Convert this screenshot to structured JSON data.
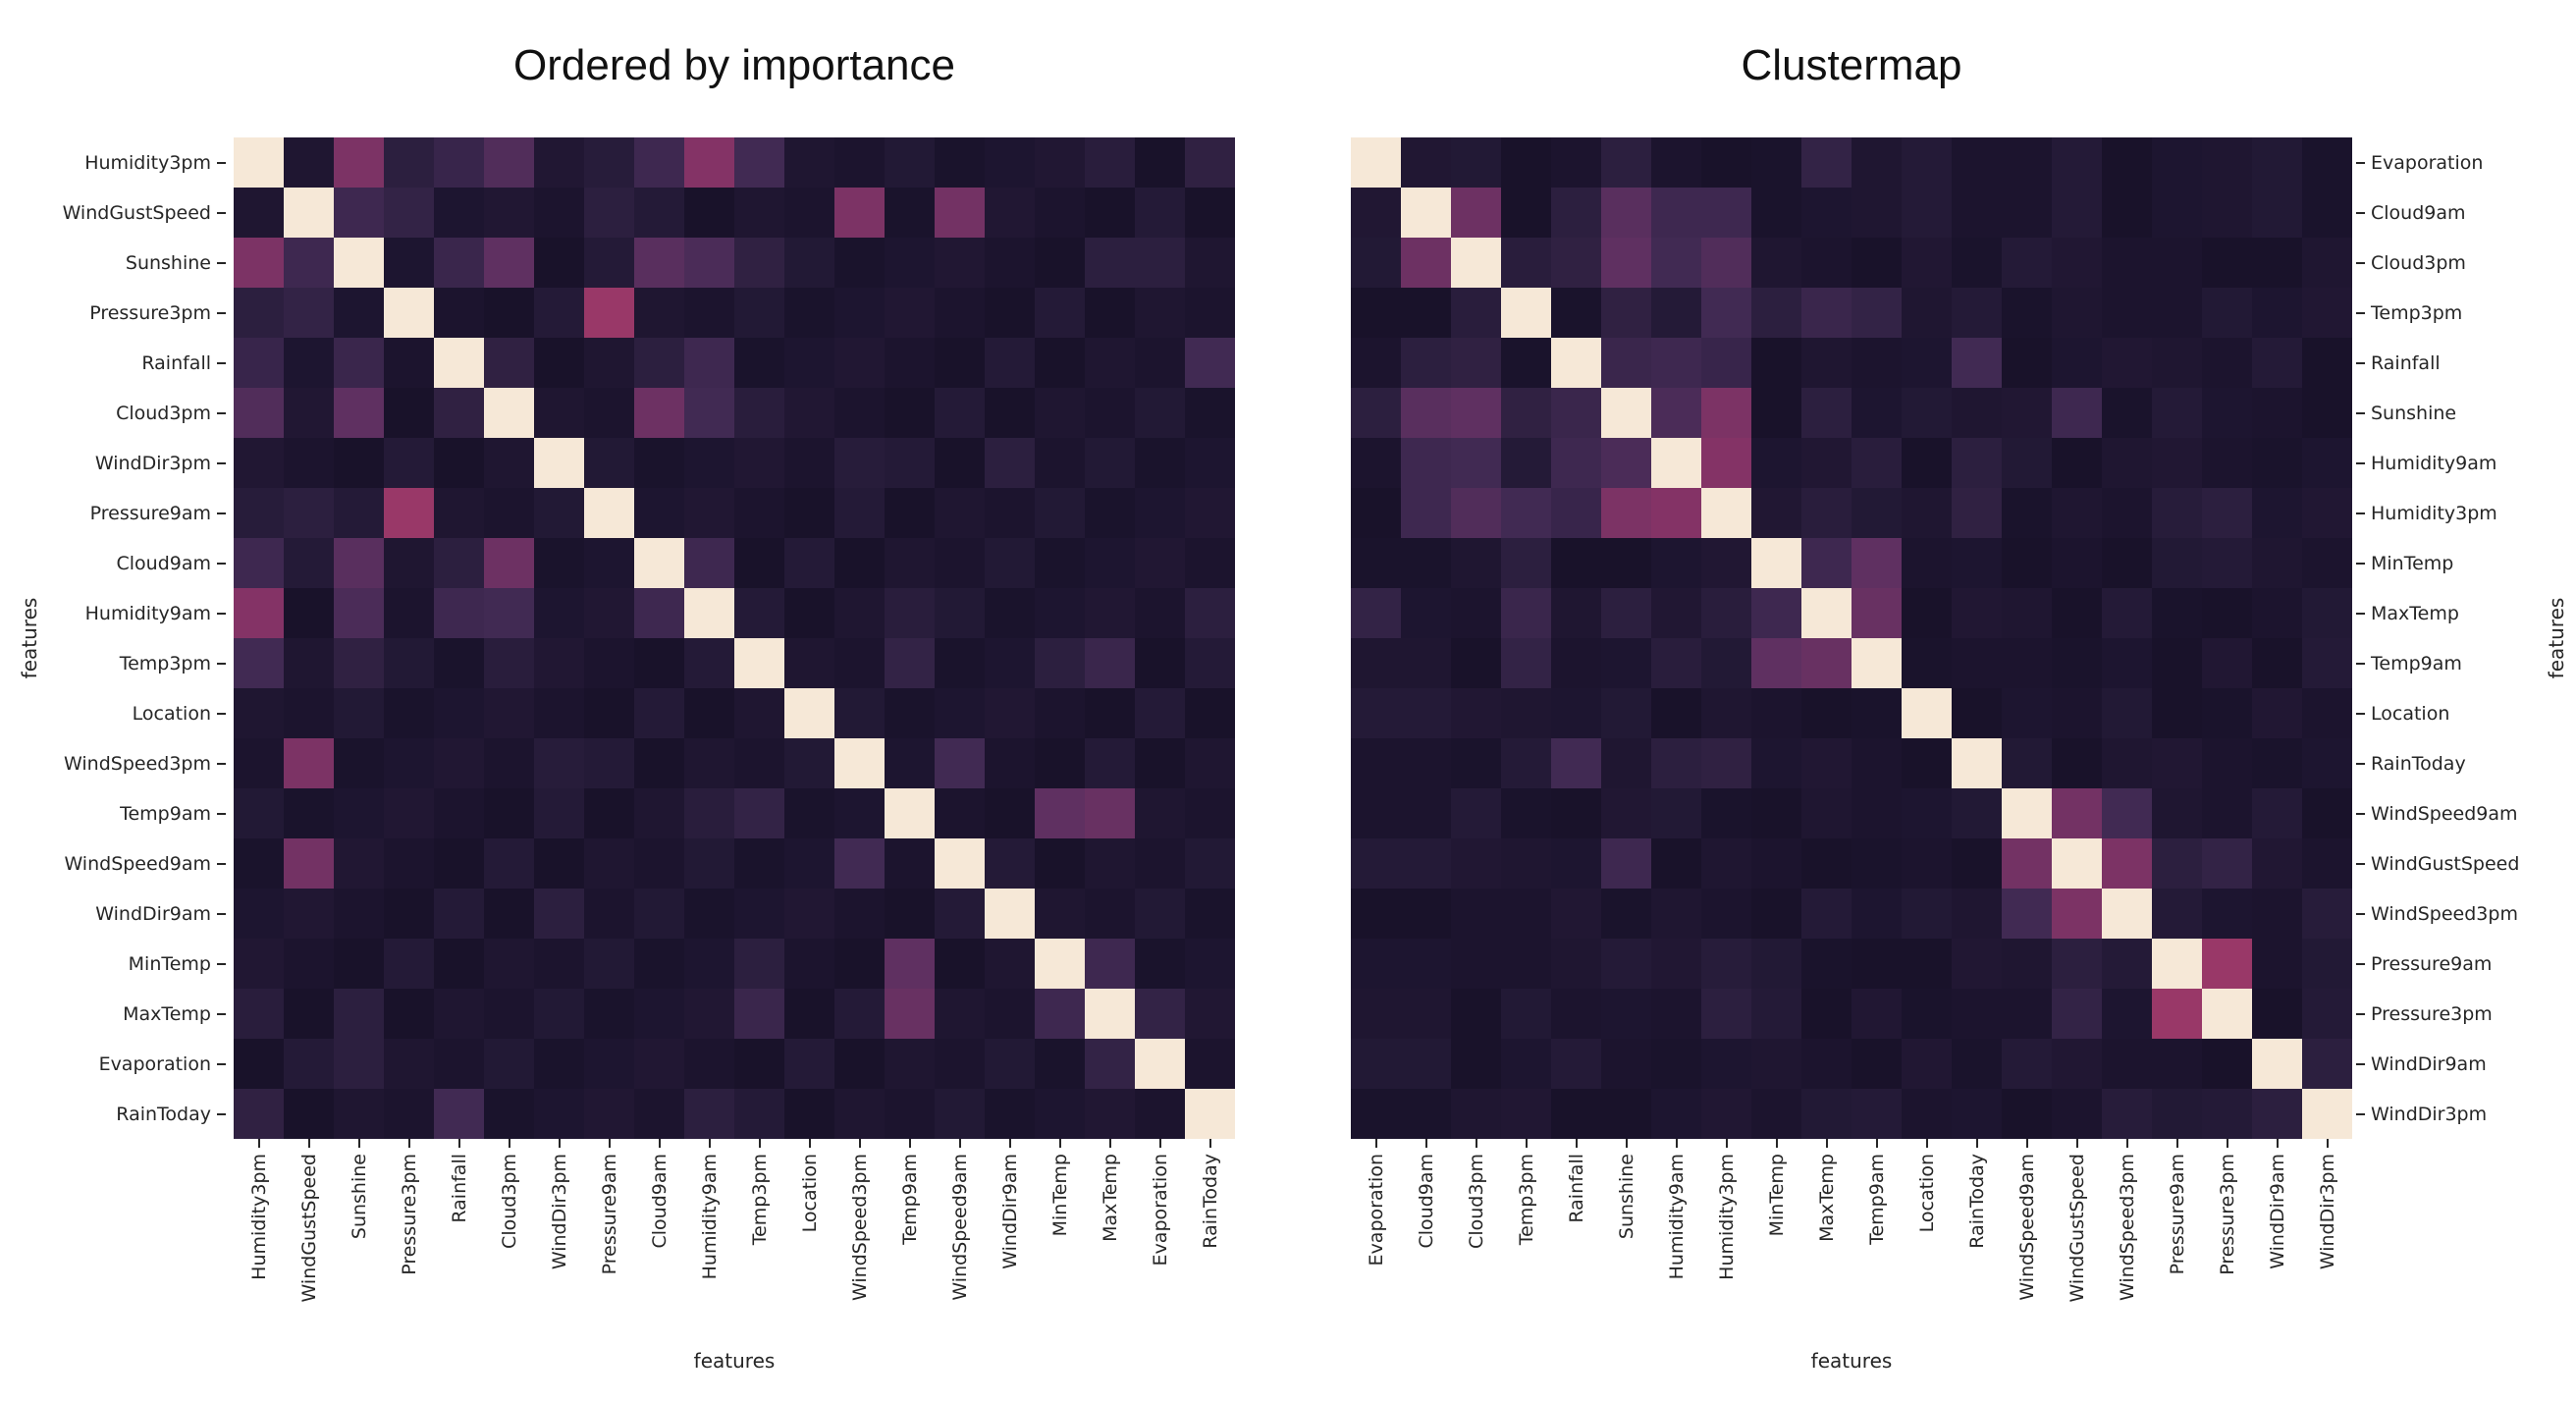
{
  "figure": {
    "background": "#ffffff"
  },
  "colormap": {
    "name": "rocket-like-dark-purple-to-cream",
    "stops": [
      [
        0.0,
        "#0f0b20"
      ],
      [
        0.15,
        "#271c3a"
      ],
      [
        0.3,
        "#412a53"
      ],
      [
        0.45,
        "#5f3061"
      ],
      [
        0.6,
        "#8a3467"
      ],
      [
        0.75,
        "#b8406b"
      ],
      [
        0.87,
        "#dd7e80"
      ],
      [
        1.0,
        "#f6e8d7"
      ]
    ]
  },
  "chart_data": [
    {
      "type": "heatmap",
      "title": "Ordered by importance",
      "xlabel": "features",
      "ylabel": "features",
      "ylabel_side": "left",
      "value_range": [
        0,
        1
      ],
      "grid": "off",
      "labels": [
        "Humidity3pm",
        "WindGustSpeed",
        "Sunshine",
        "Pressure3pm",
        "Rainfall",
        "Cloud3pm",
        "WindDir3pm",
        "Pressure9am",
        "Cloud9am",
        "Humidity9am",
        "Temp3pm",
        "Location",
        "WindSpeed3pm",
        "Temp9am",
        "WindSpeed9am",
        "WindDir9am",
        "MinTemp",
        "MaxTemp",
        "Evaporation",
        "RainToday"
      ],
      "values": [
        [
          1.0,
          0.1,
          0.55,
          0.18,
          0.25,
          0.38,
          0.11,
          0.15,
          0.28,
          0.58,
          0.3,
          0.1,
          0.08,
          0.12,
          0.07,
          0.09,
          0.11,
          0.16,
          0.06,
          0.2
        ],
        [
          0.1,
          1.0,
          0.28,
          0.22,
          0.09,
          0.11,
          0.08,
          0.18,
          0.13,
          0.06,
          0.1,
          0.08,
          0.55,
          0.07,
          0.52,
          0.11,
          0.08,
          0.06,
          0.13,
          0.06
        ],
        [
          0.55,
          0.28,
          1.0,
          0.09,
          0.26,
          0.45,
          0.06,
          0.13,
          0.42,
          0.35,
          0.2,
          0.12,
          0.07,
          0.09,
          0.11,
          0.08,
          0.06,
          0.18,
          0.18,
          0.1
        ],
        [
          0.18,
          0.22,
          0.09,
          1.0,
          0.08,
          0.06,
          0.13,
          0.65,
          0.1,
          0.08,
          0.12,
          0.07,
          0.09,
          0.11,
          0.08,
          0.06,
          0.13,
          0.06,
          0.1,
          0.08
        ],
        [
          0.25,
          0.09,
          0.26,
          0.08,
          1.0,
          0.2,
          0.06,
          0.1,
          0.18,
          0.28,
          0.07,
          0.09,
          0.11,
          0.08,
          0.06,
          0.13,
          0.06,
          0.1,
          0.08,
          0.3
        ],
        [
          0.38,
          0.11,
          0.45,
          0.06,
          0.2,
          1.0,
          0.1,
          0.08,
          0.5,
          0.3,
          0.16,
          0.11,
          0.08,
          0.06,
          0.13,
          0.06,
          0.1,
          0.08,
          0.12,
          0.07
        ],
        [
          0.11,
          0.08,
          0.06,
          0.13,
          0.06,
          0.1,
          1.0,
          0.12,
          0.07,
          0.09,
          0.11,
          0.08,
          0.15,
          0.13,
          0.06,
          0.18,
          0.08,
          0.12,
          0.07,
          0.09
        ],
        [
          0.15,
          0.18,
          0.13,
          0.65,
          0.1,
          0.08,
          0.12,
          1.0,
          0.09,
          0.11,
          0.08,
          0.06,
          0.13,
          0.06,
          0.1,
          0.08,
          0.12,
          0.07,
          0.09,
          0.11
        ],
        [
          0.28,
          0.13,
          0.42,
          0.1,
          0.18,
          0.5,
          0.07,
          0.09,
          1.0,
          0.28,
          0.06,
          0.13,
          0.06,
          0.1,
          0.08,
          0.12,
          0.07,
          0.09,
          0.11,
          0.08
        ],
        [
          0.58,
          0.06,
          0.35,
          0.08,
          0.28,
          0.3,
          0.09,
          0.11,
          0.28,
          1.0,
          0.13,
          0.06,
          0.1,
          0.16,
          0.12,
          0.07,
          0.09,
          0.11,
          0.08,
          0.18
        ],
        [
          0.3,
          0.1,
          0.2,
          0.12,
          0.07,
          0.16,
          0.11,
          0.08,
          0.06,
          0.13,
          1.0,
          0.1,
          0.08,
          0.22,
          0.07,
          0.09,
          0.18,
          0.26,
          0.06,
          0.13
        ],
        [
          0.1,
          0.08,
          0.12,
          0.07,
          0.09,
          0.11,
          0.08,
          0.06,
          0.13,
          0.06,
          0.1,
          1.0,
          0.12,
          0.07,
          0.09,
          0.11,
          0.08,
          0.06,
          0.13,
          0.06
        ],
        [
          0.08,
          0.55,
          0.07,
          0.09,
          0.11,
          0.08,
          0.15,
          0.13,
          0.06,
          0.1,
          0.08,
          0.12,
          1.0,
          0.09,
          0.3,
          0.08,
          0.06,
          0.13,
          0.06,
          0.1
        ],
        [
          0.12,
          0.07,
          0.09,
          0.11,
          0.08,
          0.06,
          0.13,
          0.06,
          0.1,
          0.16,
          0.22,
          0.07,
          0.09,
          1.0,
          0.08,
          0.06,
          0.45,
          0.48,
          0.1,
          0.08
        ],
        [
          0.07,
          0.52,
          0.11,
          0.08,
          0.06,
          0.13,
          0.06,
          0.1,
          0.08,
          0.12,
          0.07,
          0.09,
          0.3,
          0.08,
          1.0,
          0.13,
          0.06,
          0.1,
          0.08,
          0.12
        ],
        [
          0.09,
          0.11,
          0.08,
          0.06,
          0.13,
          0.06,
          0.18,
          0.08,
          0.12,
          0.07,
          0.09,
          0.11,
          0.08,
          0.06,
          0.13,
          1.0,
          0.1,
          0.08,
          0.12,
          0.07
        ],
        [
          0.11,
          0.08,
          0.06,
          0.13,
          0.06,
          0.1,
          0.08,
          0.12,
          0.07,
          0.09,
          0.18,
          0.08,
          0.06,
          0.45,
          0.06,
          0.1,
          1.0,
          0.28,
          0.07,
          0.09
        ],
        [
          0.16,
          0.06,
          0.18,
          0.06,
          0.1,
          0.08,
          0.12,
          0.07,
          0.09,
          0.11,
          0.26,
          0.06,
          0.13,
          0.48,
          0.1,
          0.08,
          0.28,
          1.0,
          0.22,
          0.11
        ],
        [
          0.06,
          0.13,
          0.18,
          0.1,
          0.08,
          0.12,
          0.07,
          0.09,
          0.11,
          0.08,
          0.06,
          0.13,
          0.06,
          0.1,
          0.08,
          0.12,
          0.07,
          0.22,
          1.0,
          0.08
        ],
        [
          0.2,
          0.06,
          0.1,
          0.08,
          0.3,
          0.07,
          0.09,
          0.11,
          0.08,
          0.18,
          0.13,
          0.06,
          0.1,
          0.08,
          0.12,
          0.07,
          0.09,
          0.11,
          0.08,
          1.0
        ]
      ]
    },
    {
      "type": "heatmap",
      "title": "Clustermap",
      "xlabel": "features",
      "ylabel": "features",
      "ylabel_side": "right",
      "value_range": [
        0,
        1
      ],
      "grid": "off",
      "labels": [
        "Evaporation",
        "Cloud9am",
        "Cloud3pm",
        "Temp3pm",
        "Rainfall",
        "Sunshine",
        "Humidity9am",
        "Humidity3pm",
        "MinTemp",
        "MaxTemp",
        "Temp9am",
        "Location",
        "RainToday",
        "WindSpeed9am",
        "WindGustSpeed",
        "WindSpeed3pm",
        "Pressure9am",
        "Pressure3pm",
        "WindDir9am",
        "WindDir3pm"
      ],
      "values_from": "same symmetric matrix as chart 0, rows and columns reordered to these labels"
    }
  ]
}
